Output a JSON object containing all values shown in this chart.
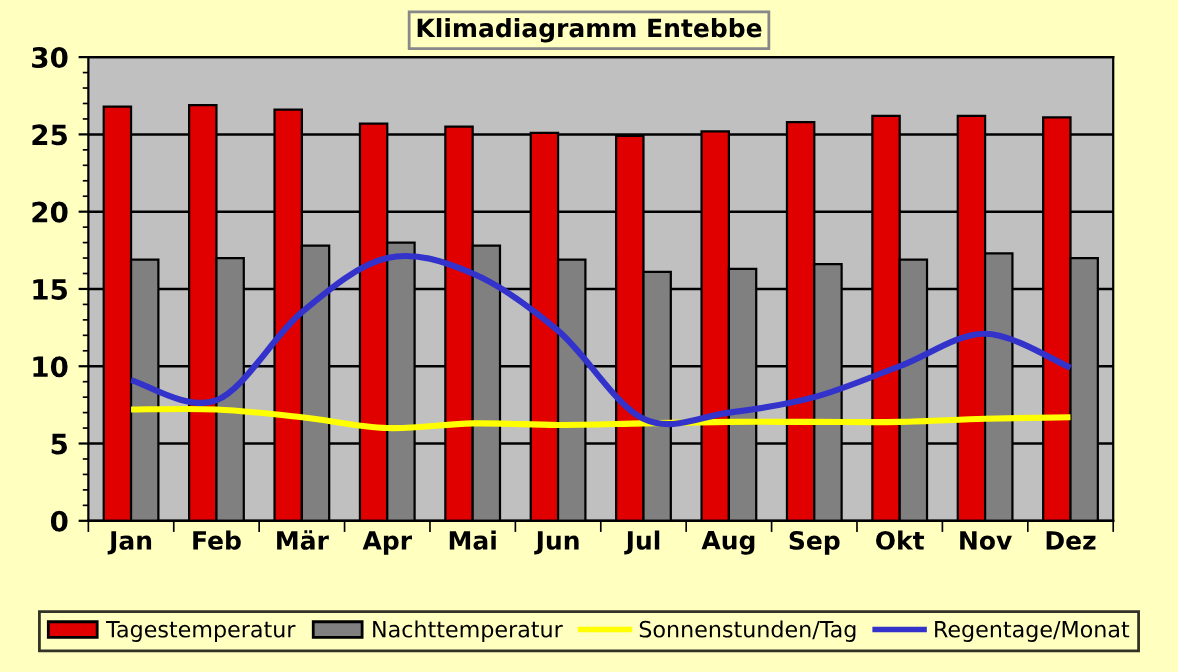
{
  "chart_data": {
    "type": "bar",
    "title": "Klimadiagramm Entebbe",
    "categories": [
      "Jan",
      "Feb",
      "Mär",
      "Apr",
      "Mai",
      "Jun",
      "Jul",
      "Aug",
      "Sep",
      "Okt",
      "Nov",
      "Dez"
    ],
    "series": [
      {
        "name": "Tagestemperatur",
        "color": "#e00000",
        "values": [
          26.8,
          26.9,
          26.6,
          25.7,
          25.5,
          25.1,
          24.9,
          25.2,
          25.8,
          26.2,
          26.2,
          26.1
        ]
      },
      {
        "name": "Nachttemperatur",
        "color": "#808080",
        "values": [
          16.9,
          17.0,
          17.8,
          18.0,
          17.8,
          16.9,
          16.1,
          16.3,
          16.6,
          16.9,
          17.3,
          17.0
        ]
      },
      {
        "name": "Sonnenstunden/Tag",
        "color": "#ffff00",
        "type": "line",
        "values": [
          7.2,
          7.2,
          6.7,
          6.0,
          6.3,
          6.2,
          6.3,
          6.4,
          6.4,
          6.4,
          6.6,
          6.7
        ]
      },
      {
        "name": "Regentage/Monat",
        "color": "#3333cc",
        "type": "line",
        "values": [
          9.1,
          7.8,
          13.5,
          17.0,
          16.0,
          12.3,
          6.6,
          7.0,
          8.0,
          10.0,
          12.1,
          9.9
        ]
      }
    ],
    "ylim": [
      0,
      30
    ],
    "yticks": [
      0,
      5,
      10,
      15,
      20,
      25,
      30
    ],
    "grid": "y",
    "legend": "bottom",
    "marker": "none",
    "line_style": "solid"
  }
}
